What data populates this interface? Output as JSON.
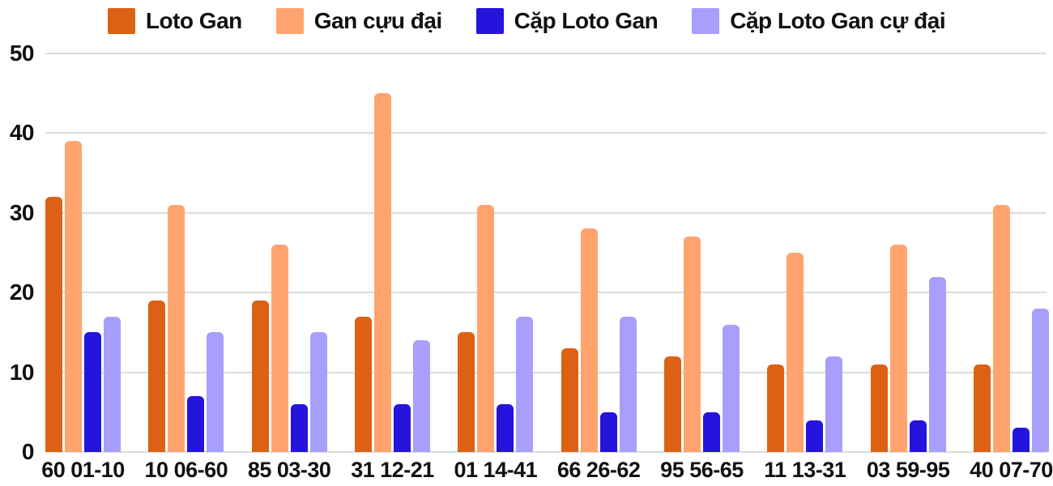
{
  "colors": {
    "background": "#ffffff",
    "grid": "#dcdcdc",
    "text": "#111111"
  },
  "chart_data": {
    "type": "bar",
    "legend_position": "top",
    "grid": true,
    "ylim": [
      0,
      50
    ],
    "yticks": [
      0,
      10,
      20,
      30,
      40,
      50
    ],
    "categories": [
      "60 01-10",
      "10 06-60",
      "85 03-30",
      "31 12-21",
      "01 14-41",
      "66 26-62",
      "95 56-65",
      "11 13-31",
      "03 59-95",
      "40 07-70"
    ],
    "series": [
      {
        "name": "Loto Gan",
        "color": "#dd6114",
        "values": [
          32,
          19,
          19,
          17,
          15,
          13,
          12,
          11,
          11,
          11
        ]
      },
      {
        "name": "Gan cựu đại",
        "color": "#ffa46e",
        "values": [
          39,
          31,
          26,
          45,
          31,
          28,
          27,
          25,
          26,
          31
        ]
      },
      {
        "name": "Cặp Loto Gan",
        "color": "#2414dc",
        "values": [
          15,
          7,
          6,
          6,
          6,
          5,
          5,
          4,
          4,
          3
        ]
      },
      {
        "name": "Cặp Loto Gan cự đại",
        "color": "#a79ffb",
        "values": [
          17,
          15,
          15,
          14,
          17,
          17,
          16,
          12,
          22,
          18
        ]
      }
    ]
  }
}
